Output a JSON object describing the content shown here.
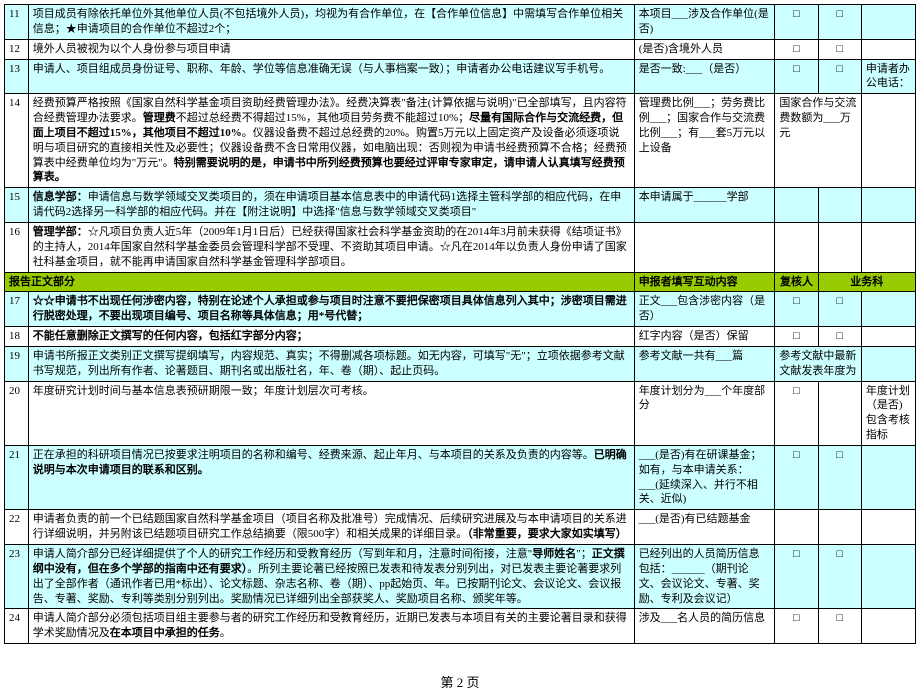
{
  "rows": [
    {
      "num": "11",
      "cls": "row-cyan",
      "desc": "项目成员有除依托单位外其他单位人员(不包括境外人员)，均视为有合作单位，在【合作单位信息】中需填写合作单位相关信息；★申请项目的合作单位不超过2个；",
      "col3": "本项目___涉及合作单位(是否)",
      "c4": "□",
      "c5": "□",
      "c6": ""
    },
    {
      "num": "12",
      "cls": "",
      "desc": "境外人员被视为以个人身份参与项目申请",
      "col3": "(是否)含境外人员",
      "c4": "□",
      "c5": "□",
      "c6": ""
    },
    {
      "num": "13",
      "cls": "row-cyan",
      "desc": "申请人、项目组成员身份证号、职称、年龄、学位等信息准确无误（与人事档案一致）；申请者办公电话建议写手机号。",
      "col3": "是否一致:___（是否）",
      "c4": "□",
      "c5": "□",
      "c6": "申请者办公电话："
    },
    {
      "num": "14",
      "cls": "",
      "desc": "<span>经费预算严格按照《国家自然科学基金项目资助经费管理办法》。经费决算表\"备注(计算依据与说明)\"已全部填写，且内容符合经费管理办法要求。</span><b>管理费</b><span>不超过总经费不得超过15%，其他项目劳务费不能超过10%；</span><b>尽量有国际合作与交流经费，但面上项目不超过15%，其他项目不超过10%</b><span>。仪器设备费不超过总经费的20%。购置5万元以上固定资产及设备必须逐项说明与项目研究的直接相关性及必要性；仪器设备费不含日常用仪器，如电脑出现：否则视为申请书经费预算不合格；经费预算表中经费单位均为\"万元\"。</span><b>特别需要说明的是，申请书中所列经费预算也要经过评审专家审定，请申请人认真填写经费预算表。</b>",
      "col3": "管理费比例___；劳务费比例___；国家合作与交流费比例___；有___套5万元以上设备",
      "c4": "国家合作与交流费数额为___万元",
      "c5": "",
      "c6": "",
      "c4_wide": true
    },
    {
      "num": "15",
      "cls": "row-cyan",
      "desc": "<b>信息学部：</b><span>申请信息与数学领域交叉类项目的，须在申请项目基本信息表中的申请代码1选择主管科学部的相应代码，在申请代码2选择另一科学部的相应代码。并在【附注说明】中选择\"信息与数学领域交叉类项目\"</span>",
      "col3": "本申请属于______学部",
      "c4": "",
      "c5": "",
      "c6": ""
    },
    {
      "num": "16",
      "cls": "",
      "desc": "<b>管理学部：</b><span>☆凡项目负责人近5年（2009年1月1日后）已经获得国家社会科学基金资助的在2014年3月前未获得《结项证书》的主持人，2014年国家自然科学基金委员会管理科学部不受理、不资助其项目申请。☆凡在2014年以负责人身份申请了国家社科基金项目，就不能再申请国家自然科学基金管理科学部项目。</span>",
      "col3": "",
      "c4": "",
      "c5": "",
      "c6": ""
    },
    {
      "section": true,
      "desc": "报告正文部分",
      "col3": "申报者填写互动内容",
      "c4": "复核人",
      "c5": "业务科"
    },
    {
      "num": "17",
      "cls": "row-cyan",
      "desc": "<b>☆☆申请书不出现任何涉密内容，特别在论述个人承担或参与项目时注意不要把保密项目具体信息列入其中；涉密项目需进行脱密处理，不要出现项目编号、项目名称等具体信息；用*号代替；</b>",
      "col3": "正文___包含涉密内容（是否）",
      "c4": "□",
      "c5": "□",
      "c6": ""
    },
    {
      "num": "18",
      "cls": "",
      "desc": "<b>不能任意删除正文撰写的任何内容，包括红字部分内容；</b>",
      "col3": "红字内容（是否）保留",
      "c4": "□",
      "c5": "□",
      "c6": ""
    },
    {
      "num": "19",
      "cls": "row-cyan",
      "desc": "申请书所报正文类别正文撰写提纲填写，内容规范、真实；不得删减各项标题。如无内容，可填写\"无\"；立项依据参考文献书写规范，列出所有作者、论著题目、期刊名或出版社名，年、卷（期）、起止页码。",
      "col3": "参考文献一共有___篇",
      "c4": "参考文献中最新文献发表年度为",
      "c5": "",
      "c6": "",
      "c4_wide": true
    },
    {
      "num": "20",
      "cls": "",
      "desc": "年度研究计划时间与基本信息表预研期限一致；年度计划层次可考核。",
      "col3": "年度计划分为___个年度部分",
      "c4": "□",
      "c5": "",
      "c6": "年度计划（是否)包含考核指标"
    },
    {
      "num": "21",
      "cls": "row-cyan",
      "desc": "<span>正在承担的科研项目情况已按要求注明项目的名称和编号、经费来源、起止年月、与本项目的关系及负责的内容等。</span><b>已明确说明与本次申请项目的联系和区别。</b>",
      "col3": "___(是否)有在研课基金；如有，与本申请关系：___(延续深入、并行不相关、近似)",
      "c4": "□",
      "c5": "□",
      "c6": ""
    },
    {
      "num": "22",
      "cls": "",
      "desc": "<span>申请者负责的前一个已结题国家自然科学基金项目（项目名称及批准号）完成情况、后续研究进展及与本申请项目的关系进行详细说明，并另附该已结题项目研究工作总结摘要（限500字）和相关成果的详细目录。</span><b>（非常重要，要求大家如实填写）</b>",
      "col3": "___(是否)有已结题基金",
      "c4": "",
      "c5": "",
      "c6": ""
    },
    {
      "num": "23",
      "cls": "row-cyan",
      "desc": "<span>申请人简介部分已经详细提供了个人的研究工作经历和受教育经历（写到年和月，注意时间衔接，注意\"</span><b>导师姓名</b><span>\"；</span><b>正文撰纲中没有，但在多个学部的指南中还有要求）</b><span>。所列主要论著已经按照已发表和待发表分别列出，对已发表主要论著要求列出了全部作者（通讯作者已用*标出）、论文标题、杂志名称、卷（期）、pp起始页、年。已按期刊论文、会议论文、会议报告、专著、奖励、专利等类别分别列出。奖励情况已详细列出全部获奖人、奖励项目名称、颁奖年等。</span>",
      "col3": "已经列出的人员简历信息包括：______（期刊论文、会议论文、专著、奖励、专利及会议记）",
      "c4": "□",
      "c5": "□",
      "c6": ""
    },
    {
      "num": "24",
      "cls": "",
      "desc": "申请人简介部分必须包括项目组主要参与者的研究工作经历和受教育经历，近期已发表与本项目有关的主要论著目录和获得学术奖励情况及<b>在本项目中承担的任务</b>。",
      "col3": "涉及___名人员的简历信息",
      "c4": "□",
      "c5": "□",
      "c6": ""
    }
  ],
  "footer": "第 2 页"
}
